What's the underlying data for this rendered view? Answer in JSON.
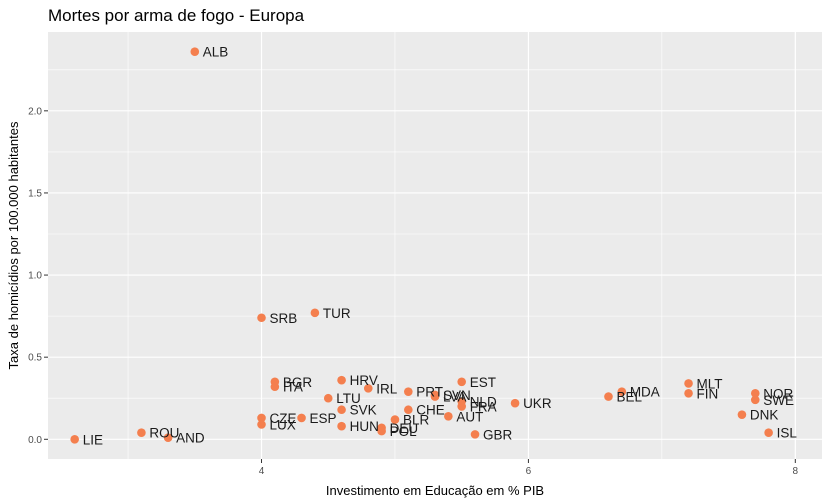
{
  "chart_data": {
    "type": "scatter",
    "title": "Mortes por arma de fogo - Europa",
    "xlabel": "Investimento em Educação em % PIB",
    "ylabel": "Taxa de homicídios por 100.000 habitantes",
    "xlim": [
      2.4,
      8.2
    ],
    "ylim": [
      -0.12,
      2.48
    ],
    "x_ticks": [
      4,
      6,
      8
    ],
    "x_tick_labels": [
      "4",
      "6",
      "8"
    ],
    "y_ticks": [
      0.0,
      0.5,
      1.0,
      1.5,
      2.0
    ],
    "y_tick_labels": [
      "0.0",
      "0.5",
      "1.0",
      "1.5",
      "2.0"
    ],
    "grid": true,
    "point_color": "#F47F4E",
    "panel_color": "#EBEBEB",
    "points": [
      {
        "label": "ALB",
        "x": 3.5,
        "y": 2.36
      },
      {
        "label": "TUR",
        "x": 4.4,
        "y": 0.77
      },
      {
        "label": "SRB",
        "x": 4.0,
        "y": 0.74
      },
      {
        "label": "BGR",
        "x": 4.1,
        "y": 0.35
      },
      {
        "label": "ITA",
        "x": 4.1,
        "y": 0.32
      },
      {
        "label": "HRV",
        "x": 4.6,
        "y": 0.36
      },
      {
        "label": "IRL",
        "x": 4.8,
        "y": 0.31
      },
      {
        "label": "PRT",
        "x": 5.1,
        "y": 0.29
      },
      {
        "label": "SVN",
        "x": 5.3,
        "y": 0.27
      },
      {
        "label": "LVA",
        "x": 5.3,
        "y": 0.26
      },
      {
        "label": "EST",
        "x": 5.5,
        "y": 0.35
      },
      {
        "label": "NLD",
        "x": 5.5,
        "y": 0.23
      },
      {
        "label": "FRA",
        "x": 5.5,
        "y": 0.2
      },
      {
        "label": "LTU",
        "x": 4.5,
        "y": 0.25
      },
      {
        "label": "SVK",
        "x": 4.6,
        "y": 0.18
      },
      {
        "label": "CHE",
        "x": 5.1,
        "y": 0.18
      },
      {
        "label": "AUT",
        "x": 5.4,
        "y": 0.14
      },
      {
        "label": "BLR",
        "x": 5.0,
        "y": 0.12
      },
      {
        "label": "UKR",
        "x": 5.9,
        "y": 0.22
      },
      {
        "label": "BEL",
        "x": 6.6,
        "y": 0.26
      },
      {
        "label": "MDA",
        "x": 6.7,
        "y": 0.29
      },
      {
        "label": "MLT",
        "x": 7.2,
        "y": 0.34
      },
      {
        "label": "FIN",
        "x": 7.2,
        "y": 0.28
      },
      {
        "label": "NOR",
        "x": 7.7,
        "y": 0.28
      },
      {
        "label": "SWE",
        "x": 7.7,
        "y": 0.24
      },
      {
        "label": "DNK",
        "x": 7.6,
        "y": 0.15
      },
      {
        "label": "ISL",
        "x": 7.8,
        "y": 0.04
      },
      {
        "label": "CZE",
        "x": 4.0,
        "y": 0.13
      },
      {
        "label": "ESP",
        "x": 4.3,
        "y": 0.13
      },
      {
        "label": "LUX",
        "x": 4.0,
        "y": 0.09
      },
      {
        "label": "HUN",
        "x": 4.6,
        "y": 0.08
      },
      {
        "label": "DEU",
        "x": 4.9,
        "y": 0.07
      },
      {
        "label": "POL",
        "x": 4.9,
        "y": 0.05
      },
      {
        "label": "GBR",
        "x": 5.6,
        "y": 0.03
      },
      {
        "label": "ROU",
        "x": 3.1,
        "y": 0.04
      },
      {
        "label": "AND",
        "x": 3.3,
        "y": 0.01
      },
      {
        "label": "LIE",
        "x": 2.6,
        "y": 0.0
      }
    ]
  }
}
